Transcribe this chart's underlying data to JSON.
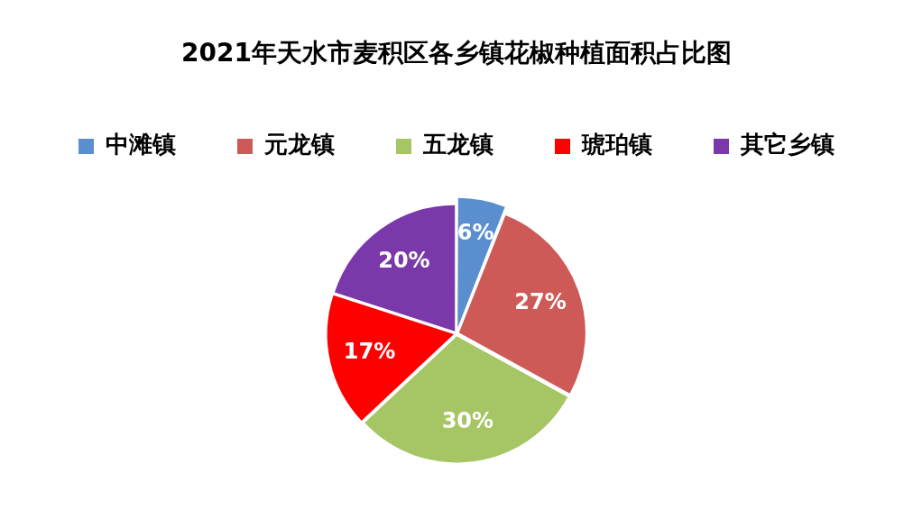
{
  "chart_data": {
    "type": "pie",
    "title": "2021年天水市麦积区各乡镇花椒种植面积占比图",
    "categories": [
      "中滩镇",
      "元龙镇",
      "五龙镇",
      "琥珀镇",
      "其它乡镇"
    ],
    "values": [
      6,
      27,
      30,
      17,
      20
    ],
    "colors": [
      "#5a8ecf",
      "#cd5a57",
      "#a6c564",
      "#ff0000",
      "#7a38ab"
    ],
    "value_labels": [
      "6%",
      "27%",
      "30%",
      "17%",
      "20%"
    ],
    "legend": "top"
  }
}
